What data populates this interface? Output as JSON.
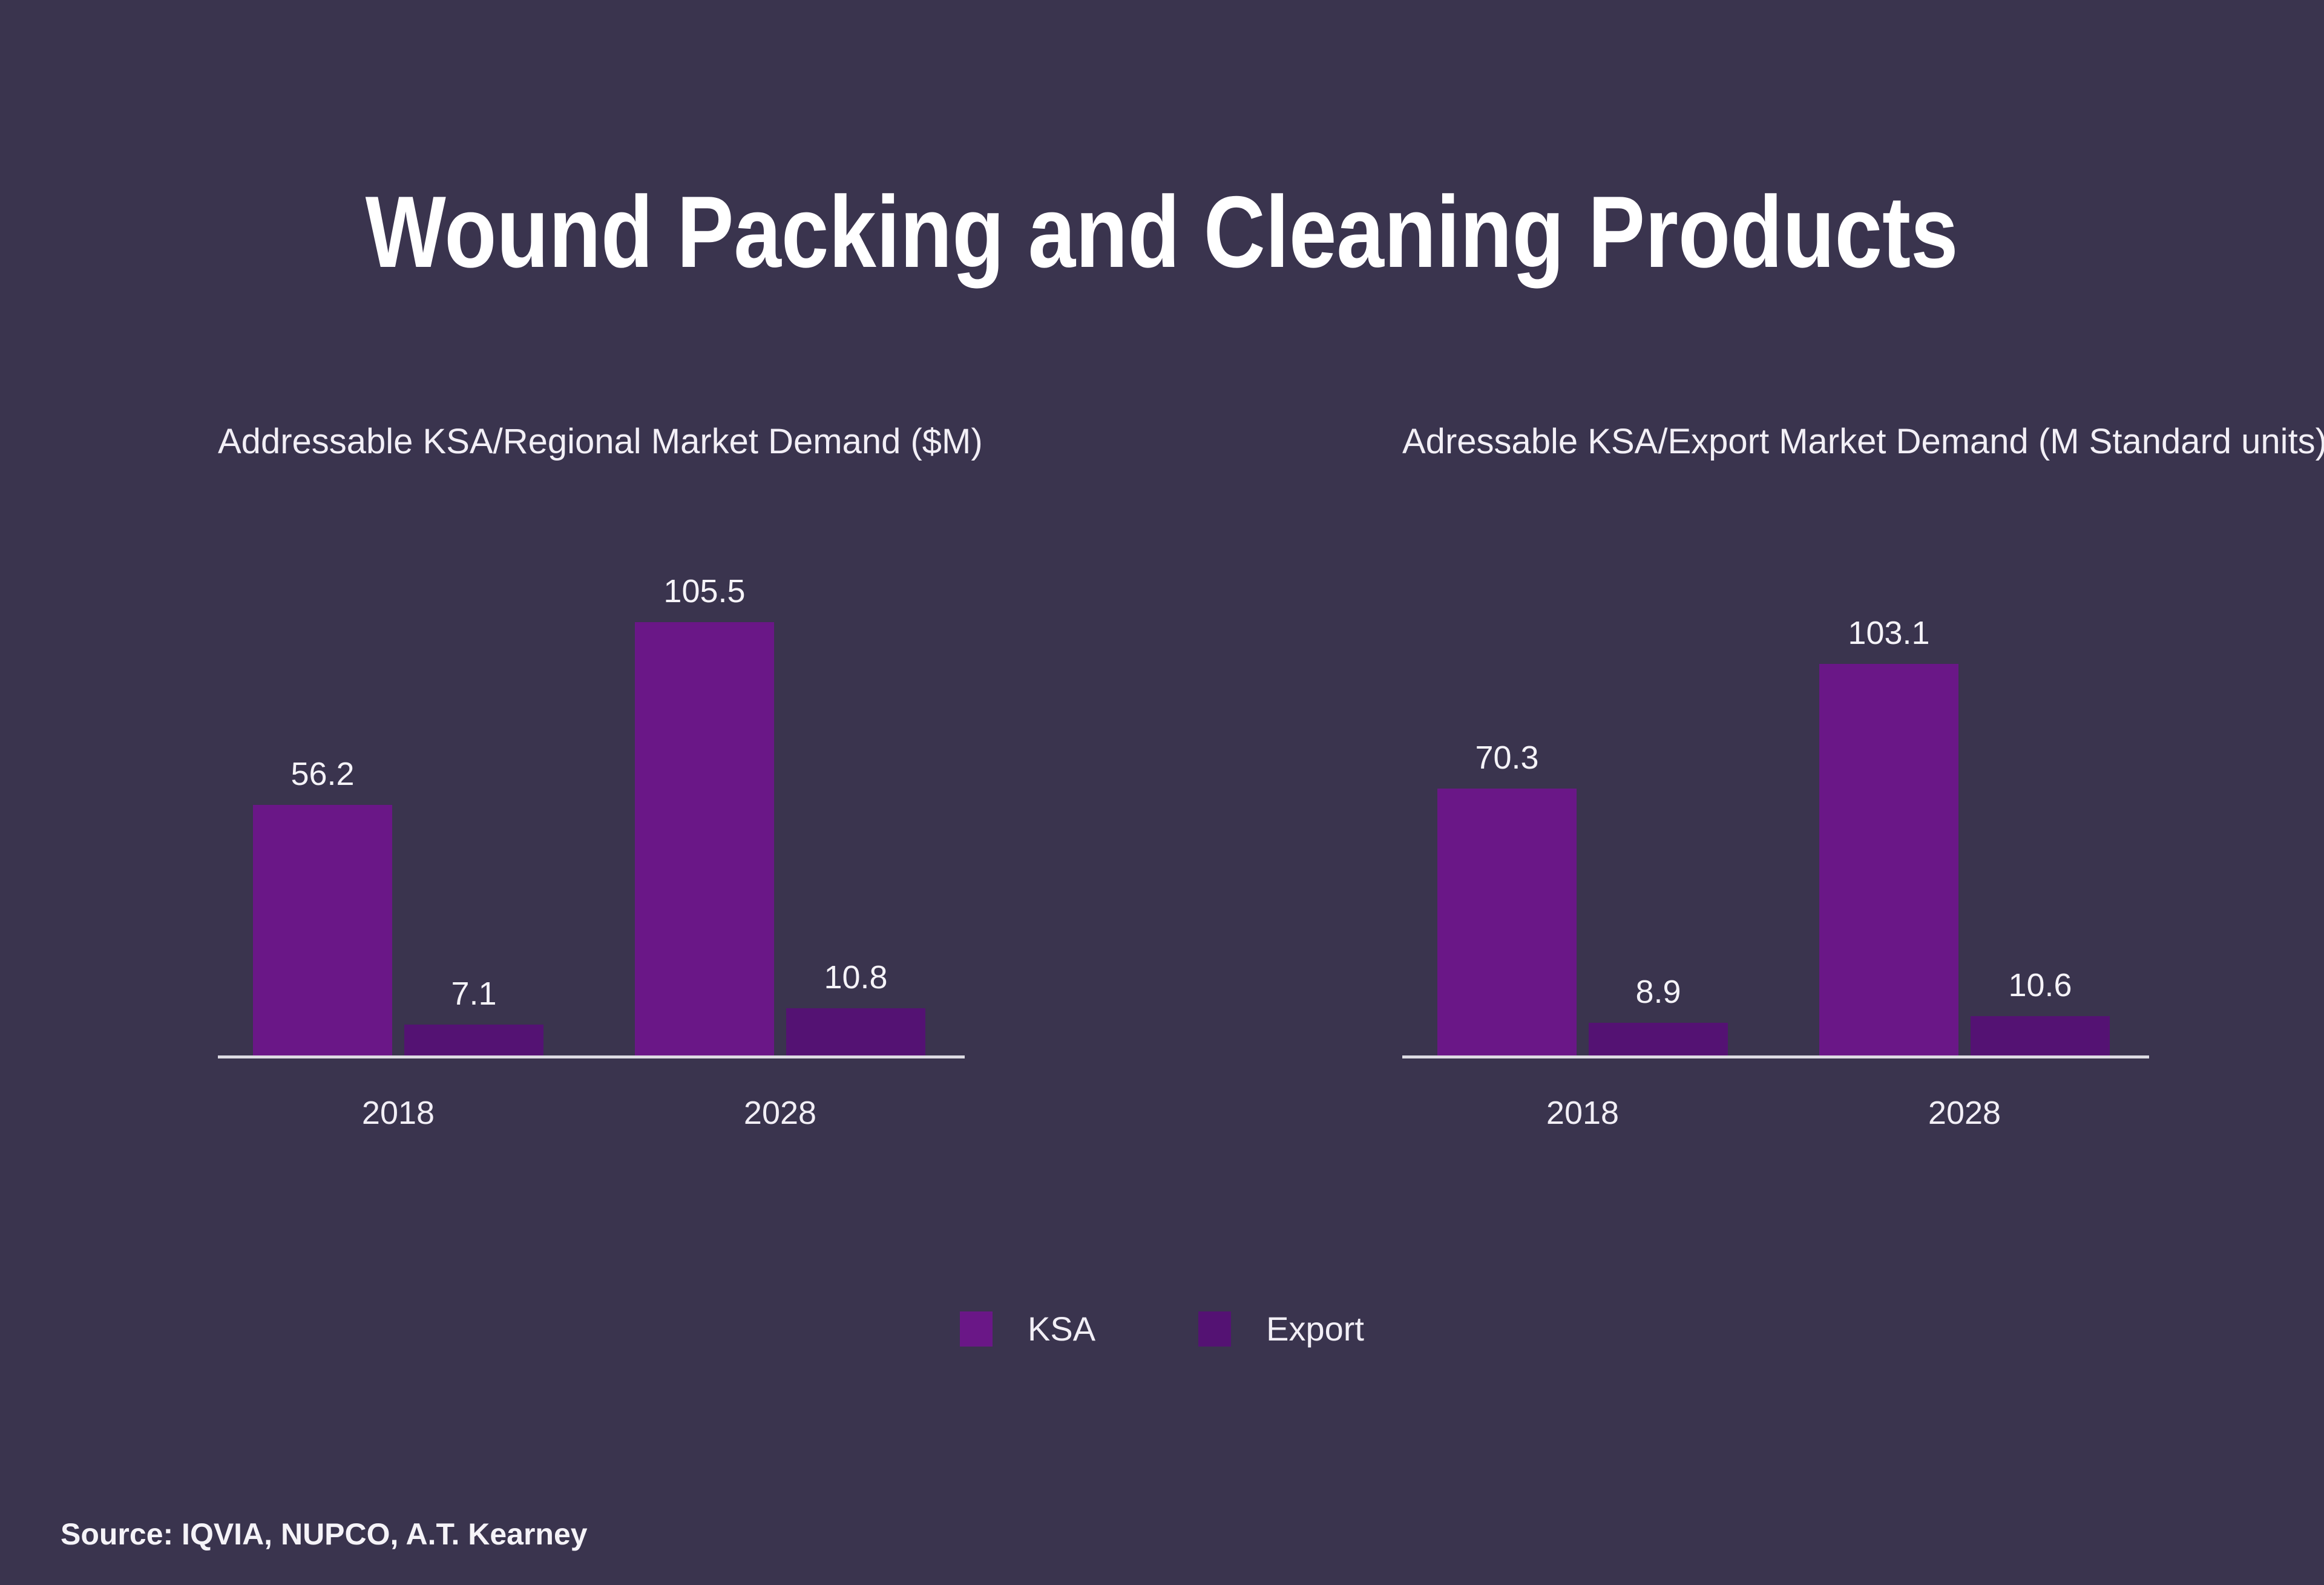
{
  "page": {
    "title": "Wound Packing and Cleaning Products",
    "source": "Source: IQVIA, NUPCO, A.T. Kearney",
    "background_color": "#3A344E",
    "text_color": "#FFFFFF",
    "axis_color": "#DDDBE3"
  },
  "legend": {
    "items": [
      {
        "label": "KSA",
        "color": "#6A1787"
      },
      {
        "label": "Export",
        "color": "#541273"
      }
    ]
  },
  "chart_data": [
    {
      "type": "bar",
      "title": "Addressable KSA/Regional Market Demand ($M)",
      "categories": [
        "2018",
        "2028"
      ],
      "series": [
        {
          "name": "KSA",
          "color": "#6A1787",
          "values": [
            56.2,
            105.5
          ]
        },
        {
          "name": "Export",
          "color": "#541273",
          "values": [
            7.1,
            10.8
          ]
        }
      ],
      "xlabel": "",
      "ylabel": "",
      "ylim": [
        0,
        108
      ],
      "grid": false,
      "value_labels": true,
      "legend_position": "bottom-center-shared"
    },
    {
      "type": "bar",
      "title": "Adressable KSA/Export Market Demand (M Standard units)",
      "categories": [
        "2018",
        "2028"
      ],
      "series": [
        {
          "name": "KSA",
          "color": "#6A1787",
          "values": [
            70.3,
            103.1
          ]
        },
        {
          "name": "Export",
          "color": "#541273",
          "values": [
            8.9,
            10.6
          ]
        }
      ],
      "xlabel": "",
      "ylabel": "",
      "ylim": [
        0,
        127
      ],
      "grid": false,
      "value_labels": true,
      "legend_position": "bottom-center-shared"
    }
  ]
}
